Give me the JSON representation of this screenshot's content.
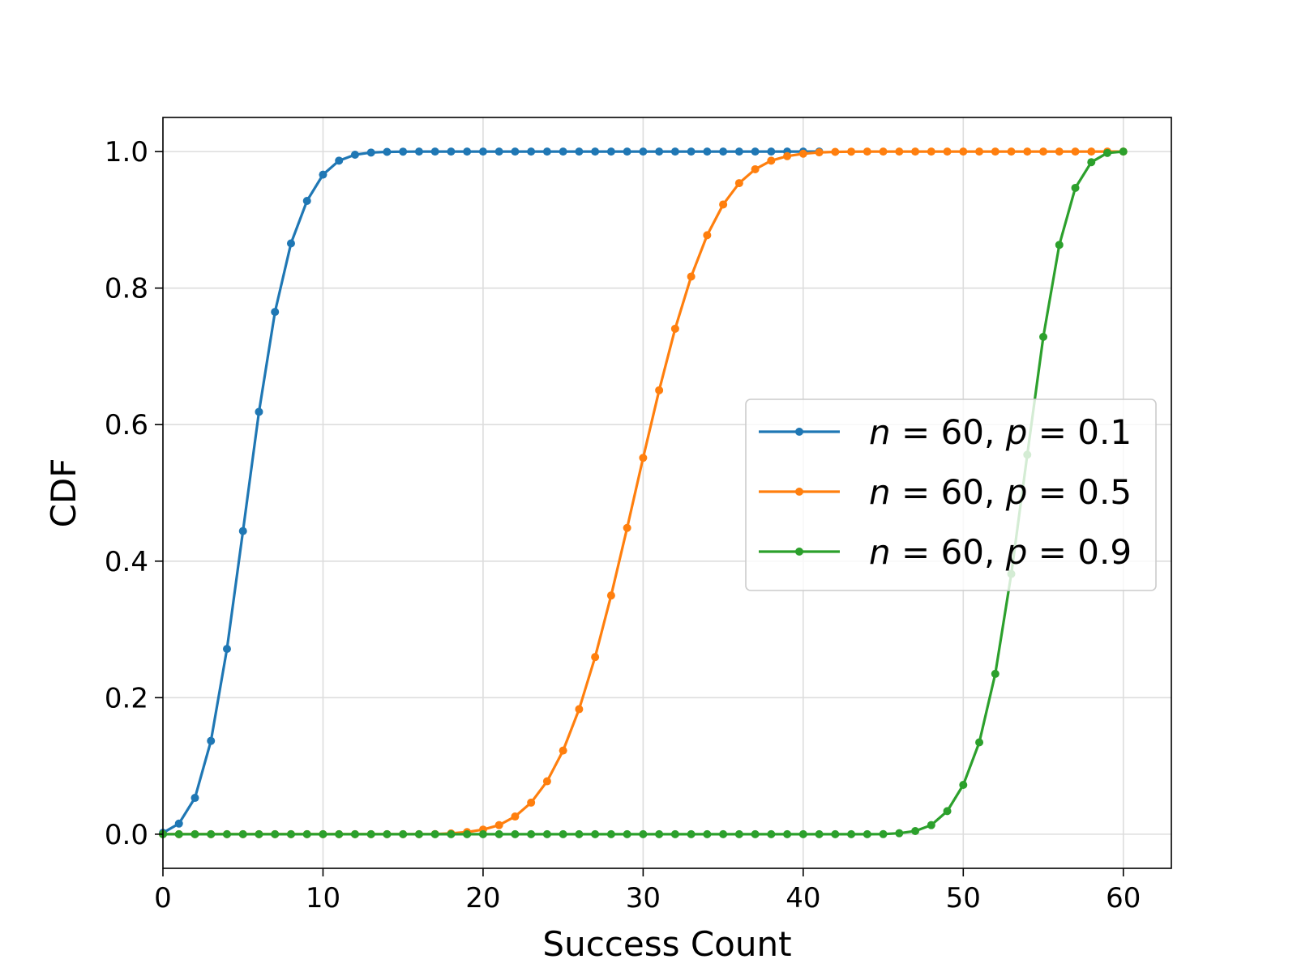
{
  "chart_data": {
    "type": "line",
    "xlabel": "Success Count",
    "ylabel": "CDF",
    "xlim": [
      0,
      63
    ],
    "ylim": [
      -0.05,
      1.05
    ],
    "xticks": [
      0,
      10,
      20,
      30,
      40,
      50,
      60
    ],
    "xtick_labels": [
      "0",
      "10",
      "20",
      "30",
      "40",
      "50",
      "60"
    ],
    "yticks": [
      0.0,
      0.2,
      0.4,
      0.6,
      0.8,
      1.0
    ],
    "ytick_labels": [
      "0.0",
      "0.2",
      "0.4",
      "0.6",
      "0.8",
      "1.0"
    ],
    "grid": true,
    "legend_position": "center-right",
    "series": [
      {
        "name": "n = 60, p = 0.1",
        "legend": {
          "n_sym": "n",
          "n_val": "60",
          "p_sym": "p",
          "p_val": "0.1"
        },
        "color": "#1f77b4",
        "x": [
          0,
          1,
          2,
          3,
          4,
          5,
          6,
          7,
          8,
          9,
          10,
          11,
          12,
          13,
          14,
          15,
          16,
          17,
          18,
          19,
          20,
          21,
          22,
          23,
          24,
          25,
          26,
          27,
          28,
          29,
          30,
          31,
          32,
          33,
          34,
          35,
          36,
          37,
          38,
          39,
          40,
          41
        ],
        "y": [
          0.002,
          0.0155,
          0.0532,
          0.1367,
          0.2714,
          0.4441,
          0.6187,
          0.7651,
          0.8655,
          0.9278,
          0.9662,
          0.9867,
          0.9954,
          0.9986,
          0.9996,
          0.9999,
          1,
          1,
          1,
          1,
          1,
          1,
          1,
          1,
          1,
          1,
          1,
          1,
          1,
          1,
          1,
          1,
          1,
          1,
          1,
          1,
          1,
          1,
          1,
          1,
          1,
          1
        ]
      },
      {
        "name": "n = 60, p = 0.5",
        "legend": {
          "n_sym": "n",
          "n_val": "60",
          "p_sym": "p",
          "p_val": "0.5"
        },
        "color": "#ff7f0e",
        "x": [
          0,
          1,
          2,
          3,
          4,
          5,
          6,
          7,
          8,
          9,
          10,
          11,
          12,
          13,
          14,
          15,
          16,
          17,
          18,
          19,
          20,
          21,
          22,
          23,
          24,
          25,
          26,
          27,
          28,
          29,
          30,
          31,
          32,
          33,
          34,
          35,
          36,
          37,
          38,
          39,
          40,
          41,
          42,
          43,
          44,
          45,
          46,
          47,
          48,
          49,
          50,
          51,
          52,
          53,
          54,
          55,
          56,
          57,
          58,
          59,
          60
        ],
        "y": [
          0,
          0,
          0,
          0,
          0,
          0,
          0,
          0,
          0,
          0,
          0,
          0,
          0,
          0,
          0,
          0,
          0,
          0.0002,
          0.0012,
          0.0031,
          0.0067,
          0.0133,
          0.0259,
          0.0462,
          0.0775,
          0.1225,
          0.1831,
          0.2595,
          0.3497,
          0.4487,
          0.5513,
          0.6503,
          0.7405,
          0.8169,
          0.8775,
          0.9225,
          0.9538,
          0.9741,
          0.9867,
          0.9933,
          0.9969,
          0.9988,
          0.9996,
          0.9999,
          1,
          1,
          1,
          1,
          1,
          1,
          1,
          1,
          1,
          1,
          1,
          1,
          1,
          1,
          1,
          1,
          1
        ]
      },
      {
        "name": "n = 60, p = 0.9",
        "legend": {
          "n_sym": "n",
          "n_val": "60",
          "p_sym": "p",
          "p_val": "0.9"
        },
        "color": "#2ca02c",
        "x": [
          0,
          1,
          2,
          3,
          4,
          5,
          6,
          7,
          8,
          9,
          10,
          11,
          12,
          13,
          14,
          15,
          16,
          17,
          18,
          19,
          20,
          21,
          22,
          23,
          24,
          25,
          26,
          27,
          28,
          29,
          30,
          31,
          32,
          33,
          34,
          35,
          36,
          37,
          38,
          39,
          40,
          41,
          42,
          43,
          44,
          45,
          46,
          47,
          48,
          49,
          50,
          51,
          52,
          53,
          54,
          55,
          56,
          57,
          58,
          59,
          60
        ],
        "y": [
          0,
          0,
          0,
          0,
          0,
          0,
          0,
          0,
          0,
          0,
          0,
          0,
          0,
          0,
          0,
          0,
          0,
          0,
          0,
          0,
          0,
          0,
          0,
          0,
          0,
          0,
          0,
          0,
          0,
          0,
          0,
          0,
          0,
          0,
          0,
          0,
          0,
          0,
          0,
          0,
          0,
          0,
          0,
          0,
          0,
          0.0001,
          0.0014,
          0.0046,
          0.0133,
          0.0338,
          0.0722,
          0.1345,
          0.2349,
          0.3813,
          0.5559,
          0.7286,
          0.8633,
          0.9468,
          0.9845,
          0.998,
          1
        ]
      }
    ]
  }
}
